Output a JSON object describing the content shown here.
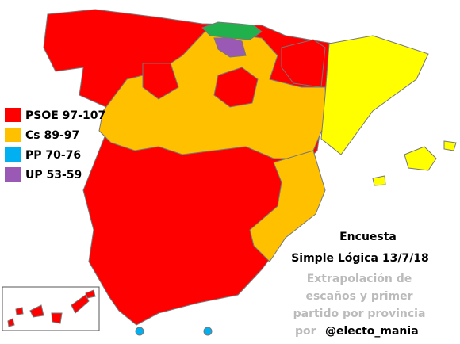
{
  "legend": [
    {
      "label": "PSOE 97-107",
      "color": "#ff0000"
    },
    {
      "label": "Cs 89-97",
      "color": "#ffc000"
    },
    {
      "label": "PP 70-76",
      "color": "#00b0f0"
    },
    {
      "label": "UP 53-59",
      "color": "#9b59b6"
    }
  ],
  "title": {
    "line1": "Encuesta",
    "line2": "Simple Lógica 13/7/18"
  },
  "note": {
    "line1": "Extrapolación de",
    "line2": "escaños y primer",
    "line3": "partido por provincia",
    "prefix": "por",
    "author": "@electo_mania"
  }
}
